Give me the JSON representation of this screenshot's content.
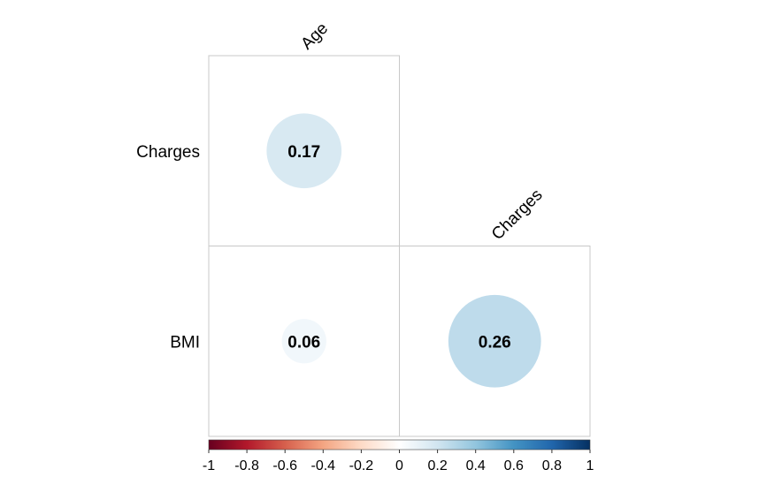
{
  "chart_data": {
    "type": "heatmap",
    "style": "corrplot-circle-lower",
    "columns": [
      "Age",
      "Charges"
    ],
    "rows": [
      "Charges",
      "BMI"
    ],
    "cells": [
      {
        "row": "Charges",
        "col": "Age",
        "value": 0.17,
        "label": "0.17"
      },
      {
        "row": "BMI",
        "col": "Age",
        "value": 0.06,
        "label": "0.06"
      },
      {
        "row": "BMI",
        "col": "Charges",
        "value": 0.26,
        "label": "0.26"
      }
    ],
    "colorbar": {
      "range": [
        -1,
        1
      ],
      "tick_labels": [
        "-1",
        "-0.8",
        "-0.6",
        "-0.4",
        "-0.2",
        "0",
        "0.2",
        "0.4",
        "0.6",
        "0.8",
        "1"
      ],
      "colors": [
        "#67001f",
        "#b2182b",
        "#d6604d",
        "#f4a582",
        "#fddbc7",
        "#ffffff",
        "#d1e5f0",
        "#92c5de",
        "#4393c3",
        "#2166ac",
        "#053061"
      ]
    }
  }
}
